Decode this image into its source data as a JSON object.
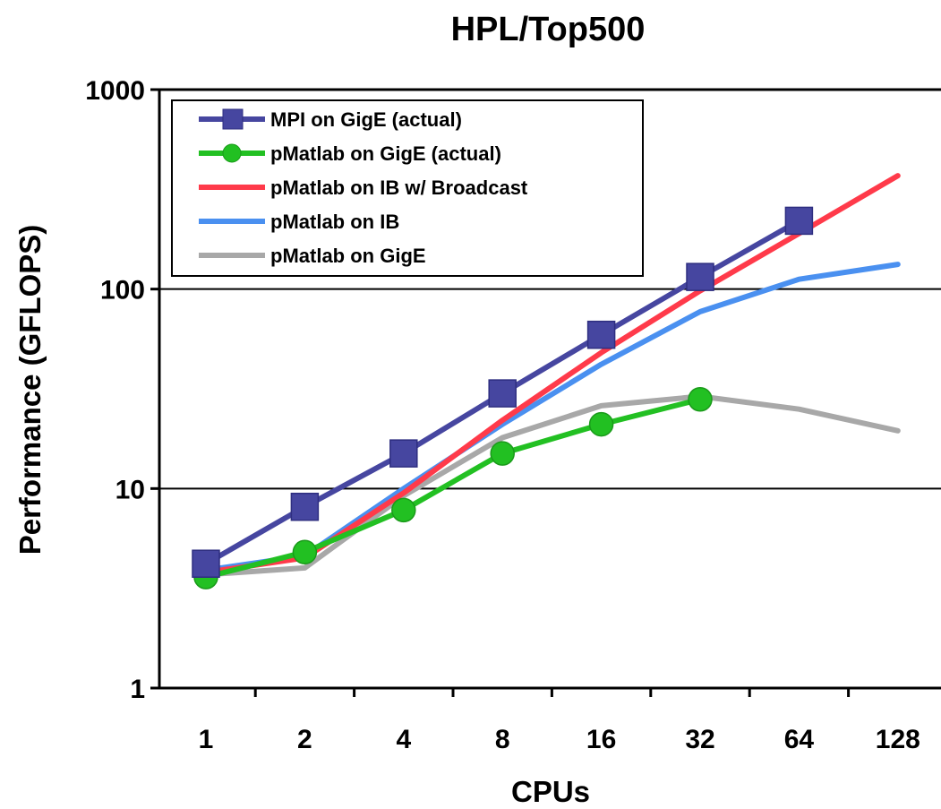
{
  "chart_data": {
    "type": "line",
    "title": "HPL/Top500",
    "xlabel": "CPUs",
    "ylabel": "Performance (GFLOPS)",
    "x_scale": "log2",
    "y_scale": "log10",
    "categories": [
      "1",
      "2",
      "4",
      "8",
      "16",
      "32",
      "64",
      "128"
    ],
    "x": [
      1,
      2,
      4,
      8,
      16,
      32,
      64,
      128
    ],
    "yticks": [
      "1",
      "10",
      "100",
      "1000"
    ],
    "ylim": [
      1,
      1000
    ],
    "grid": "horizontal major",
    "legend_position": "top-left",
    "series": [
      {
        "name": "MPI on GigE (actual)",
        "color": "#4646a0",
        "marker": "square",
        "x": [
          1,
          2,
          4,
          8,
          16,
          32,
          64
        ],
        "values": [
          4.2,
          8.1,
          15,
          30,
          59,
          115,
          220
        ]
      },
      {
        "name": "pMatlab on GigE (actual)",
        "color": "#22c022",
        "marker": "circle",
        "x": [
          1,
          2,
          4,
          8,
          16,
          32
        ],
        "values": [
          3.6,
          4.8,
          7.8,
          15,
          21,
          28
        ]
      },
      {
        "name": "pMatlab on IB w/ Broadcast",
        "color": "#ff3a4a",
        "marker": "none",
        "x": [
          1,
          2,
          4,
          8,
          16,
          32,
          64,
          128
        ],
        "values": [
          3.8,
          4.5,
          9.5,
          22,
          48,
          98,
          190,
          370
        ]
      },
      {
        "name": "pMatlab on IB",
        "color": "#4a90f0",
        "marker": "none",
        "x": [
          1,
          2,
          4,
          8,
          16,
          32,
          64,
          128
        ],
        "values": [
          3.9,
          4.6,
          10,
          21,
          42,
          77,
          112,
          133
        ]
      },
      {
        "name": "pMatlab on GigE",
        "color": "#a8a8a8",
        "marker": "none",
        "x": [
          1,
          2,
          4,
          8,
          16,
          32,
          64,
          128
        ],
        "values": [
          3.7,
          4.0,
          9.2,
          18,
          26,
          29,
          25,
          19.5
        ]
      }
    ]
  }
}
